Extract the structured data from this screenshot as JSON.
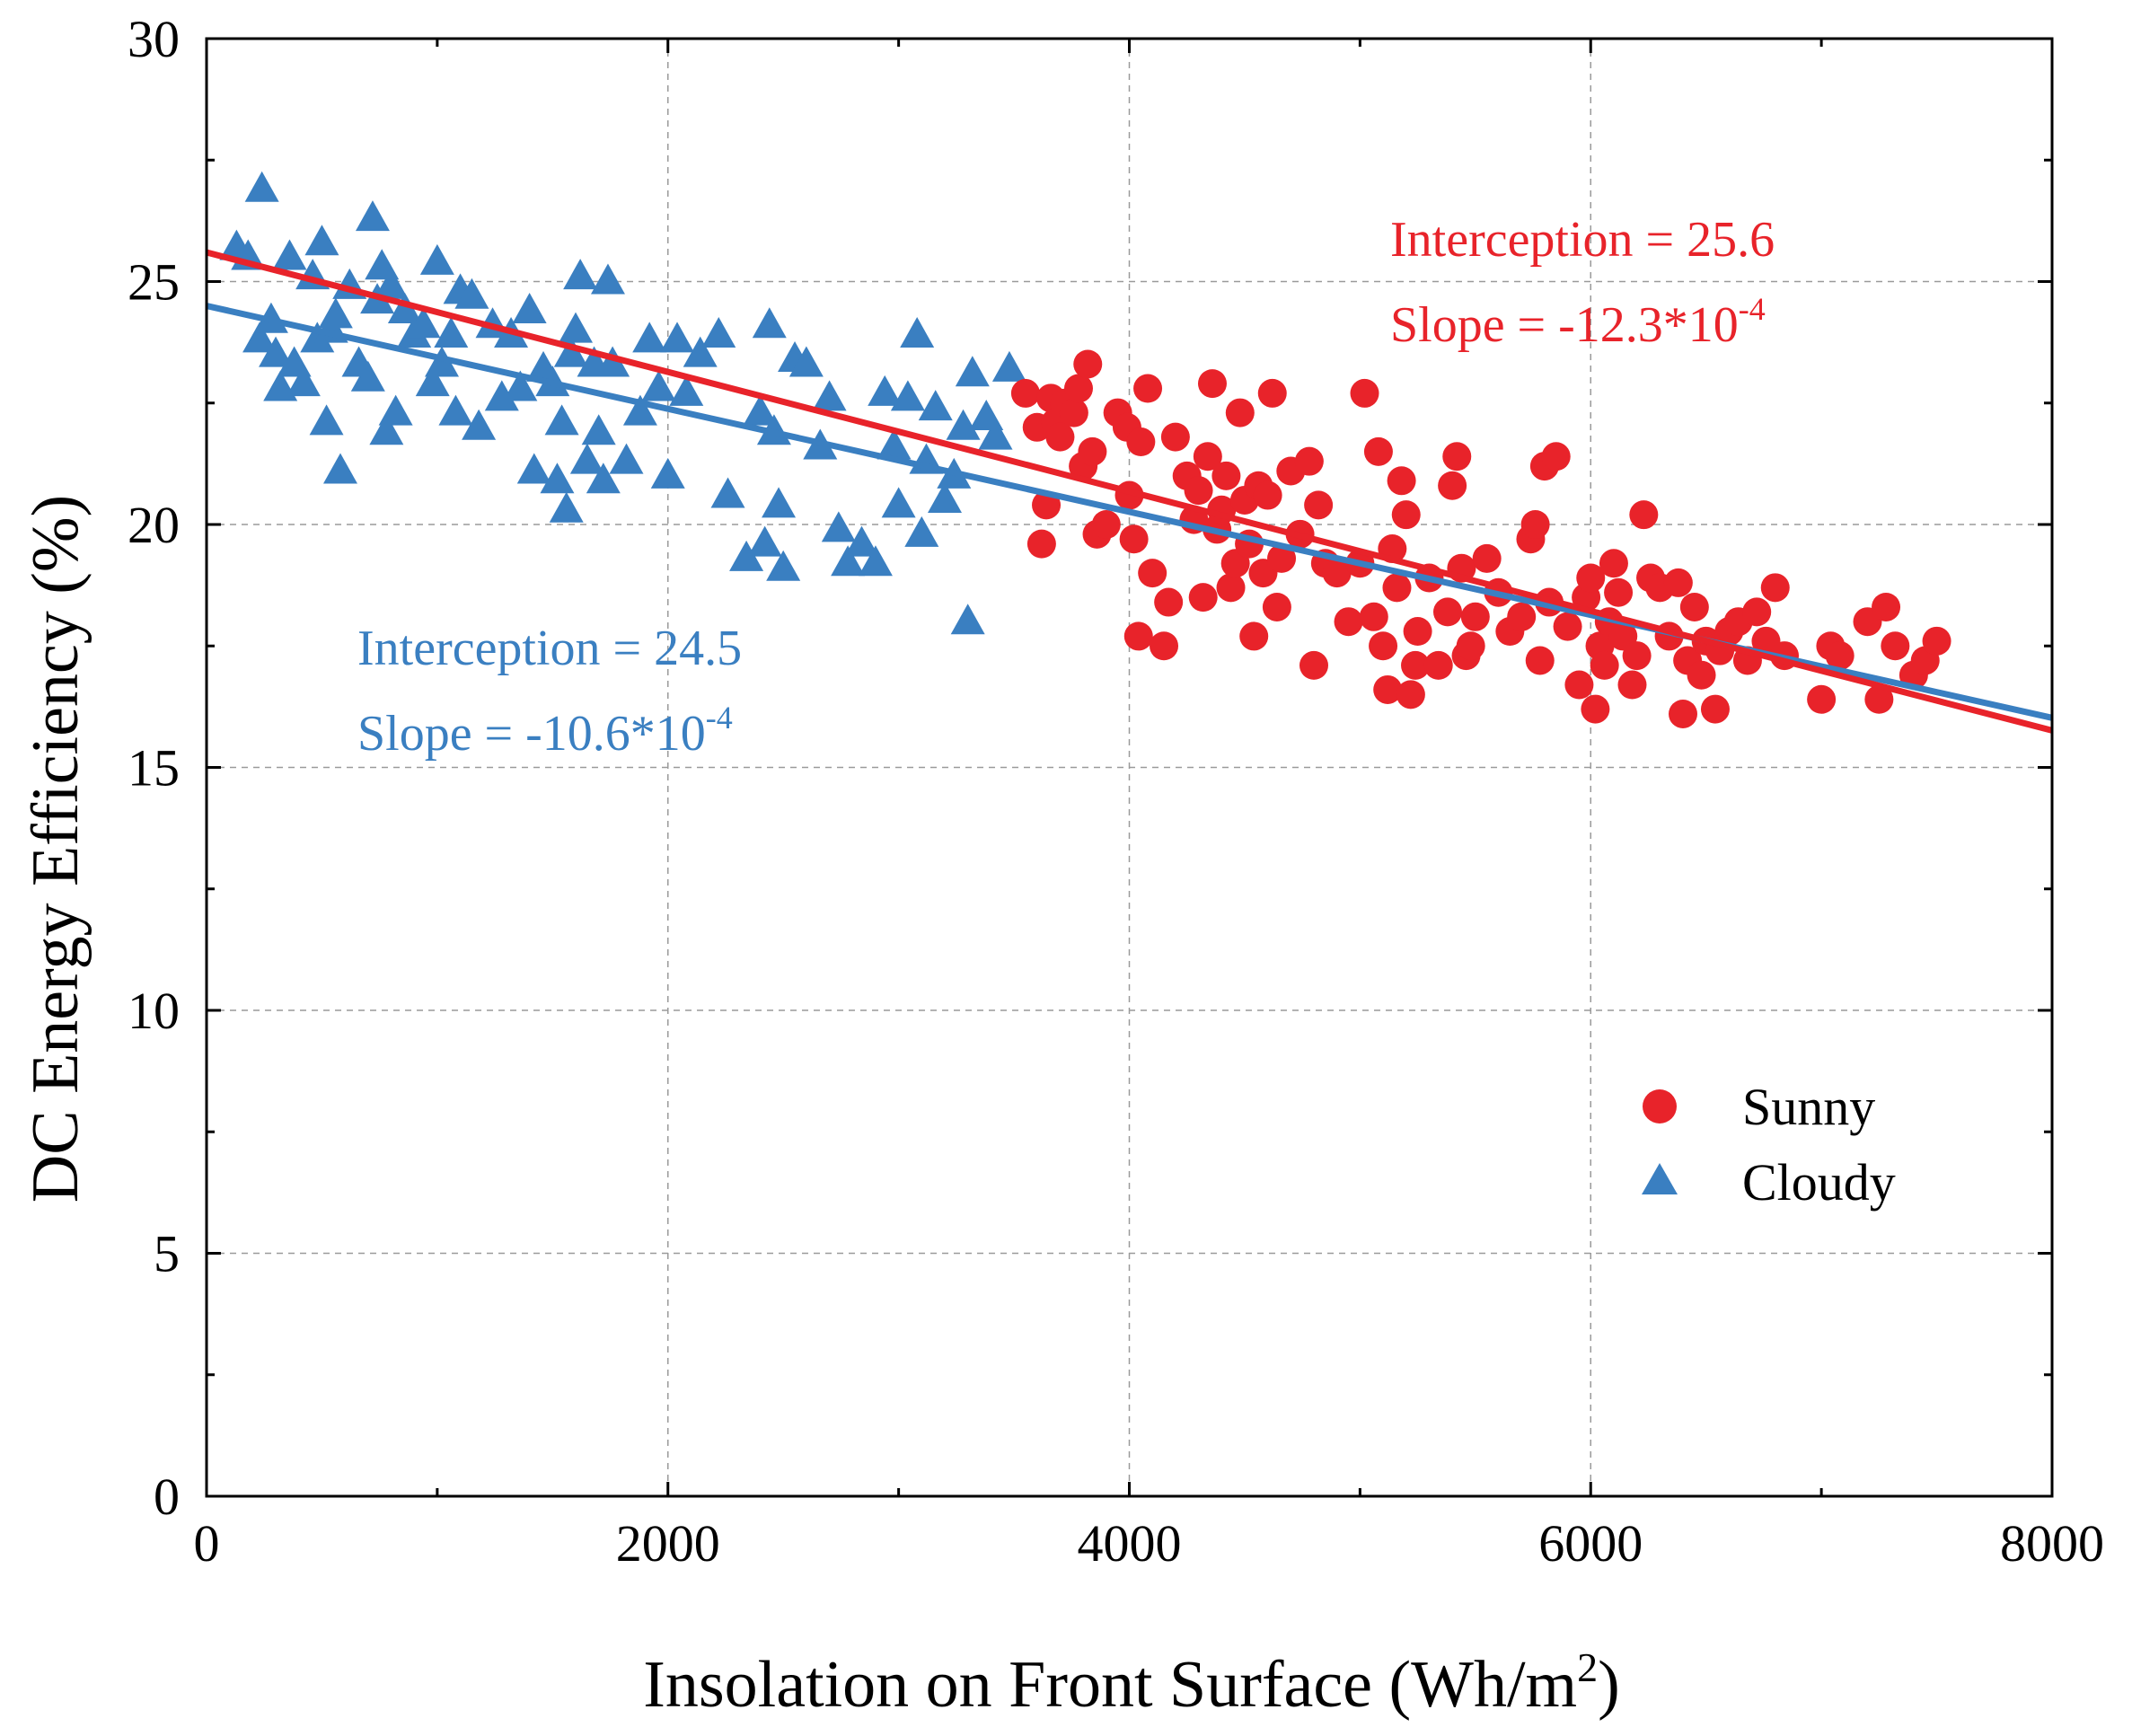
{
  "chart_data": {
    "type": "scatter",
    "title": "",
    "xlabel": "Insolation on Front Surface (Wh/m",
    "xlabel_sup": "2",
    "xlabel_suffix": ")",
    "ylabel": "DC Energy Efficiency (%)",
    "xlim": [
      0,
      8000
    ],
    "ylim": [
      0,
      30
    ],
    "xticks": [
      0,
      2000,
      4000,
      6000,
      8000
    ],
    "yticks": [
      0,
      5,
      10,
      15,
      20,
      25,
      30
    ],
    "x_tick_labels": [
      "0",
      "2000",
      "4000",
      "6000",
      "8000"
    ],
    "y_tick_labels": [
      "0",
      "5",
      "10",
      "15",
      "20",
      "25",
      "30"
    ],
    "grid": true,
    "legend_position": "lower-right",
    "series": [
      {
        "name": "Sunny",
        "marker": "circle",
        "color": "#e8232a",
        "fit": {
          "intercept": 25.6,
          "slope": -0.00123
        },
        "points": [
          [
            3550,
            22.7
          ],
          [
            3600,
            22.0
          ],
          [
            3620,
            19.6
          ],
          [
            3640,
            20.4
          ],
          [
            3660,
            22.6
          ],
          [
            3680,
            22.1
          ],
          [
            3700,
            21.8
          ],
          [
            3720,
            22.5
          ],
          [
            3760,
            22.3
          ],
          [
            3780,
            22.8
          ],
          [
            3800,
            21.2
          ],
          [
            3820,
            23.3
          ],
          [
            3840,
            21.5
          ],
          [
            3860,
            19.8
          ],
          [
            3900,
            20.0
          ],
          [
            3950,
            22.3
          ],
          [
            3990,
            22.0
          ],
          [
            4000,
            20.6
          ],
          [
            4020,
            19.7
          ],
          [
            4040,
            17.7
          ],
          [
            4050,
            21.7
          ],
          [
            4080,
            22.8
          ],
          [
            4100,
            19.0
          ],
          [
            4150,
            17.5
          ],
          [
            4170,
            18.4
          ],
          [
            4200,
            21.8
          ],
          [
            4250,
            21.0
          ],
          [
            4280,
            20.1
          ],
          [
            4300,
            20.7
          ],
          [
            4320,
            18.5
          ],
          [
            4340,
            21.4
          ],
          [
            4360,
            22.9
          ],
          [
            4380,
            19.9
          ],
          [
            4400,
            20.3
          ],
          [
            4420,
            21.0
          ],
          [
            4440,
            18.7
          ],
          [
            4460,
            19.2
          ],
          [
            4480,
            22.3
          ],
          [
            4500,
            20.5
          ],
          [
            4520,
            19.6
          ],
          [
            4540,
            17.7
          ],
          [
            4560,
            20.8
          ],
          [
            4580,
            19.0
          ],
          [
            4600,
            20.6
          ],
          [
            4620,
            22.7
          ],
          [
            4640,
            18.3
          ],
          [
            4660,
            19.3
          ],
          [
            4700,
            21.1
          ],
          [
            4740,
            19.8
          ],
          [
            4780,
            21.3
          ],
          [
            4800,
            17.1
          ],
          [
            4820,
            20.4
          ],
          [
            4850,
            19.2
          ],
          [
            4900,
            19.0
          ],
          [
            4950,
            18.0
          ],
          [
            5000,
            19.2
          ],
          [
            5020,
            22.7
          ],
          [
            5060,
            18.1
          ],
          [
            5080,
            21.5
          ],
          [
            5100,
            17.5
          ],
          [
            5120,
            16.6
          ],
          [
            5140,
            19.5
          ],
          [
            5160,
            18.7
          ],
          [
            5180,
            20.9
          ],
          [
            5200,
            20.2
          ],
          [
            5220,
            16.5
          ],
          [
            5240,
            17.1
          ],
          [
            5250,
            17.8
          ],
          [
            5300,
            18.9
          ],
          [
            5340,
            17.1
          ],
          [
            5380,
            18.2
          ],
          [
            5400,
            20.8
          ],
          [
            5420,
            21.4
          ],
          [
            5440,
            19.1
          ],
          [
            5460,
            17.3
          ],
          [
            5480,
            17.5
          ],
          [
            5500,
            18.1
          ],
          [
            5550,
            19.3
          ],
          [
            5600,
            18.6
          ],
          [
            5650,
            17.8
          ],
          [
            5700,
            18.1
          ],
          [
            5740,
            19.7
          ],
          [
            5760,
            20.0
          ],
          [
            5780,
            17.2
          ],
          [
            5800,
            21.2
          ],
          [
            5820,
            18.4
          ],
          [
            5850,
            21.4
          ],
          [
            5900,
            17.9
          ],
          [
            5950,
            16.7
          ],
          [
            5980,
            18.5
          ],
          [
            6000,
            18.9
          ],
          [
            6020,
            16.2
          ],
          [
            6040,
            17.5
          ],
          [
            6060,
            17.1
          ],
          [
            6080,
            18.0
          ],
          [
            6100,
            19.2
          ],
          [
            6120,
            18.6
          ],
          [
            6140,
            17.7
          ],
          [
            6180,
            16.7
          ],
          [
            6200,
            17.3
          ],
          [
            6230,
            20.2
          ],
          [
            6260,
            18.9
          ],
          [
            6300,
            18.7
          ],
          [
            6340,
            17.7
          ],
          [
            6380,
            18.8
          ],
          [
            6400,
            16.1
          ],
          [
            6420,
            17.2
          ],
          [
            6450,
            18.3
          ],
          [
            6480,
            16.9
          ],
          [
            6500,
            17.6
          ],
          [
            6540,
            16.2
          ],
          [
            6560,
            17.4
          ],
          [
            6600,
            17.8
          ],
          [
            6640,
            18.0
          ],
          [
            6680,
            17.2
          ],
          [
            6720,
            18.2
          ],
          [
            6760,
            17.6
          ],
          [
            6800,
            18.7
          ],
          [
            6840,
            17.3
          ],
          [
            7000,
            16.4
          ],
          [
            7040,
            17.5
          ],
          [
            7080,
            17.3
          ],
          [
            7200,
            18.0
          ],
          [
            7250,
            16.4
          ],
          [
            7280,
            18.3
          ],
          [
            7320,
            17.5
          ],
          [
            7400,
            16.9
          ],
          [
            7450,
            17.2
          ],
          [
            7500,
            17.6
          ]
        ]
      },
      {
        "name": "Cloudy",
        "marker": "triangle",
        "color": "#3a7fc1",
        "fit": {
          "intercept": 24.5,
          "slope": -0.00106
        },
        "points": [
          [
            130,
            25.7
          ],
          [
            180,
            25.5
          ],
          [
            230,
            23.8
          ],
          [
            240,
            26.9
          ],
          [
            280,
            24.2
          ],
          [
            300,
            23.5
          ],
          [
            320,
            22.8
          ],
          [
            360,
            25.5
          ],
          [
            380,
            23.3
          ],
          [
            420,
            22.9
          ],
          [
            460,
            25.1
          ],
          [
            480,
            23.8
          ],
          [
            500,
            25.8
          ],
          [
            520,
            22.1
          ],
          [
            540,
            24.0
          ],
          [
            560,
            24.3
          ],
          [
            580,
            21.1
          ],
          [
            620,
            24.9
          ],
          [
            660,
            23.3
          ],
          [
            700,
            23.0
          ],
          [
            720,
            26.3
          ],
          [
            740,
            24.6
          ],
          [
            760,
            25.3
          ],
          [
            780,
            21.9
          ],
          [
            800,
            24.9
          ],
          [
            820,
            22.3
          ],
          [
            860,
            24.4
          ],
          [
            900,
            23.9
          ],
          [
            940,
            24.1
          ],
          [
            980,
            22.9
          ],
          [
            1000,
            25.4
          ],
          [
            1020,
            23.3
          ],
          [
            1060,
            23.9
          ],
          [
            1080,
            22.3
          ],
          [
            1100,
            24.8
          ],
          [
            1150,
            24.7
          ],
          [
            1180,
            22.0
          ],
          [
            1240,
            24.1
          ],
          [
            1280,
            22.6
          ],
          [
            1320,
            23.9
          ],
          [
            1360,
            22.8
          ],
          [
            1400,
            24.4
          ],
          [
            1420,
            21.1
          ],
          [
            1460,
            23.2
          ],
          [
            1500,
            22.9
          ],
          [
            1520,
            20.9
          ],
          [
            1540,
            22.1
          ],
          [
            1560,
            20.3
          ],
          [
            1580,
            23.5
          ],
          [
            1600,
            24.0
          ],
          [
            1620,
            25.1
          ],
          [
            1650,
            21.3
          ],
          [
            1680,
            23.3
          ],
          [
            1700,
            21.9
          ],
          [
            1720,
            20.9
          ],
          [
            1740,
            25.0
          ],
          [
            1760,
            23.3
          ],
          [
            1820,
            21.3
          ],
          [
            1880,
            22.3
          ],
          [
            1920,
            23.8
          ],
          [
            1960,
            22.8
          ],
          [
            2000,
            21.0
          ],
          [
            2040,
            23.8
          ],
          [
            2080,
            22.7
          ],
          [
            2140,
            23.5
          ],
          [
            2220,
            23.9
          ],
          [
            2260,
            20.6
          ],
          [
            2340,
            19.3
          ],
          [
            2400,
            22.3
          ],
          [
            2420,
            19.6
          ],
          [
            2440,
            24.1
          ],
          [
            2460,
            21.9
          ],
          [
            2480,
            20.4
          ],
          [
            2500,
            19.1
          ],
          [
            2550,
            23.4
          ],
          [
            2600,
            23.3
          ],
          [
            2660,
            21.6
          ],
          [
            2700,
            22.6
          ],
          [
            2740,
            19.9
          ],
          [
            2780,
            19.2
          ],
          [
            2840,
            19.6
          ],
          [
            2900,
            19.2
          ],
          [
            2940,
            22.7
          ],
          [
            2980,
            21.6
          ],
          [
            3000,
            20.4
          ],
          [
            3040,
            22.6
          ],
          [
            3080,
            23.9
          ],
          [
            3100,
            19.8
          ],
          [
            3120,
            21.3
          ],
          [
            3160,
            22.4
          ],
          [
            3200,
            20.5
          ],
          [
            3240,
            21.0
          ],
          [
            3280,
            22.0
          ],
          [
            3300,
            18.0
          ],
          [
            3320,
            23.1
          ],
          [
            3380,
            22.2
          ],
          [
            3420,
            21.8
          ],
          [
            3480,
            23.2
          ]
        ]
      }
    ],
    "annotations": [
      {
        "series": "Sunny",
        "line1": "Interception = 25.6",
        "line2": "Slope = -12.3*10",
        "line2_sup": "-4"
      },
      {
        "series": "Cloudy",
        "line1": "Interception = 24.5",
        "line2": "Slope = -10.6*10",
        "line2_sup": "-4"
      }
    ]
  }
}
